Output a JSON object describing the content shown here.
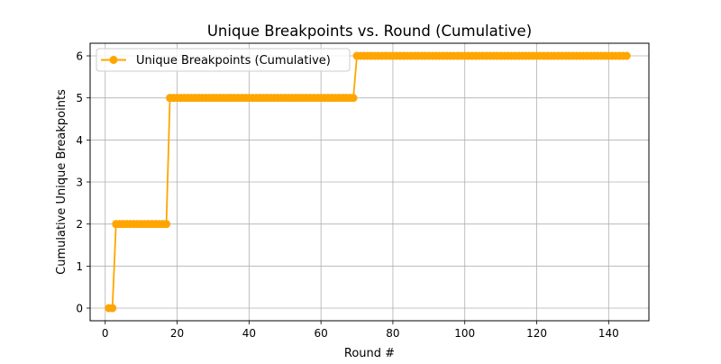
{
  "chart_data": {
    "type": "line",
    "title": "Unique Breakpoints vs. Round (Cumulative)",
    "xlabel": "Round #",
    "ylabel": "Cumulative Unique Breakpoints",
    "xlim": [
      -4.2,
      151.2
    ],
    "ylim": [
      -0.3,
      6.3
    ],
    "xticks": [
      0,
      20,
      40,
      60,
      80,
      100,
      120,
      140
    ],
    "xtick_labels": [
      "0",
      "20",
      "40",
      "60",
      "80",
      "100",
      "120",
      "140"
    ],
    "yticks": [
      0,
      1,
      2,
      3,
      4,
      5,
      6
    ],
    "ytick_labels": [
      "0",
      "1",
      "2",
      "3",
      "4",
      "5",
      "6"
    ],
    "grid": true,
    "legend": {
      "position": "top-left"
    },
    "series": [
      {
        "name": "Unique Breakpoints (Cumulative)",
        "color": "#ffa500",
        "marker": "circle",
        "segments": [
          {
            "x_start": 1,
            "x_end": 2,
            "y": 0
          },
          {
            "x_start": 3,
            "x_end": 17,
            "y": 2
          },
          {
            "x_start": 18,
            "x_end": 69,
            "y": 5
          },
          {
            "x_start": 70,
            "x_end": 145,
            "y": 6
          }
        ]
      }
    ]
  }
}
